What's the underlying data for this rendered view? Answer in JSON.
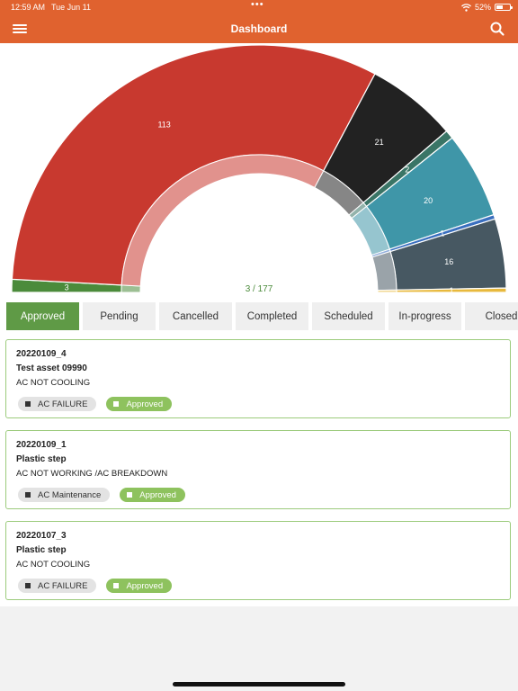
{
  "status_bar": {
    "time": "12:59 AM",
    "date": "Tue Jun 11",
    "battery": "52%",
    "battery_level": 0.52
  },
  "header": {
    "title": "Dashboard"
  },
  "chart": {
    "center_label": "3 / 177",
    "colors": {
      "approved": "#4b8b3b",
      "red": "#c8392f",
      "black": "#222222",
      "teal_dark": "#3a7566",
      "teal": "#3f96a8",
      "blue": "#3a6fbf",
      "slate": "#475862",
      "gold": "#e8b93d"
    }
  },
  "chart_data": {
    "type": "pie",
    "segments": [
      {
        "value": 3,
        "label": "3",
        "color": "#4b8b3b"
      },
      {
        "value": 113,
        "label": "113",
        "color": "#c8392f"
      },
      {
        "value": 21,
        "label": "21",
        "color": "#222222"
      },
      {
        "value": 2,
        "label": "2",
        "color": "#3a7566"
      },
      {
        "value": 20,
        "label": "20",
        "color": "#3f96a8"
      },
      {
        "value": 1,
        "label": "1",
        "color": "#3a6fbf"
      },
      {
        "value": 16,
        "label": "16",
        "color": "#475862"
      },
      {
        "value": 1,
        "label": "1",
        "color": "#e8b93d"
      }
    ],
    "total": 177
  },
  "tabs": [
    "Approved",
    "Pending",
    "Cancelled",
    "Completed",
    "Scheduled",
    "In-progress",
    "Closed"
  ],
  "active_tab": "Approved",
  "items": [
    {
      "id": "20220109_4",
      "asset": "Test asset 09990",
      "description": "AC NOT COOLING",
      "category": "AC FAILURE",
      "status": "Approved"
    },
    {
      "id": "20220109_1",
      "asset": "Plastic step",
      "description": "AC NOT WORKING /AC BREAKDOWN",
      "category": "AC Maintenance",
      "status": "Approved"
    },
    {
      "id": "20220107_3",
      "asset": "Plastic step",
      "description": "AC NOT COOLING",
      "category": "AC FAILURE",
      "status": "Approved"
    }
  ]
}
